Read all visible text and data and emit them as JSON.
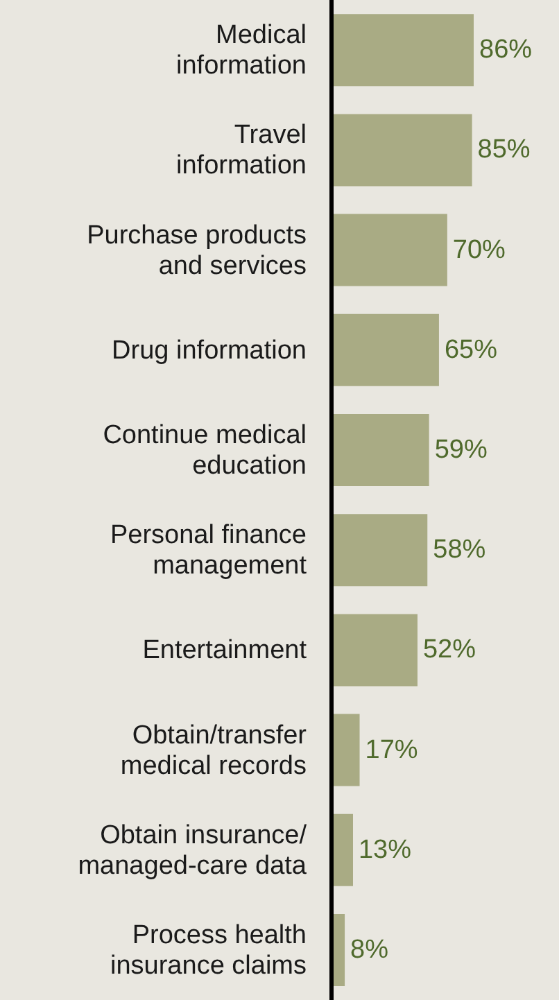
{
  "chart_data": {
    "type": "bar",
    "orientation": "horizontal",
    "categories": [
      "Medical information",
      "Travel information",
      "Purchase products and services",
      "Drug information",
      "Continue medical education",
      "Personal finance management",
      "Entertainment",
      "Obtain/transfer medical records",
      "Obtain insurance/ managed-care data",
      "Process health insurance claims"
    ],
    "values": [
      86,
      85,
      70,
      65,
      59,
      58,
      52,
      17,
      13,
      8
    ],
    "value_labels": [
      "86%",
      "85%",
      "70%",
      "65%",
      "59%",
      "58%",
      "52%",
      "17%",
      "13%",
      "8%"
    ],
    "color": "#a9ab84"
  }
}
